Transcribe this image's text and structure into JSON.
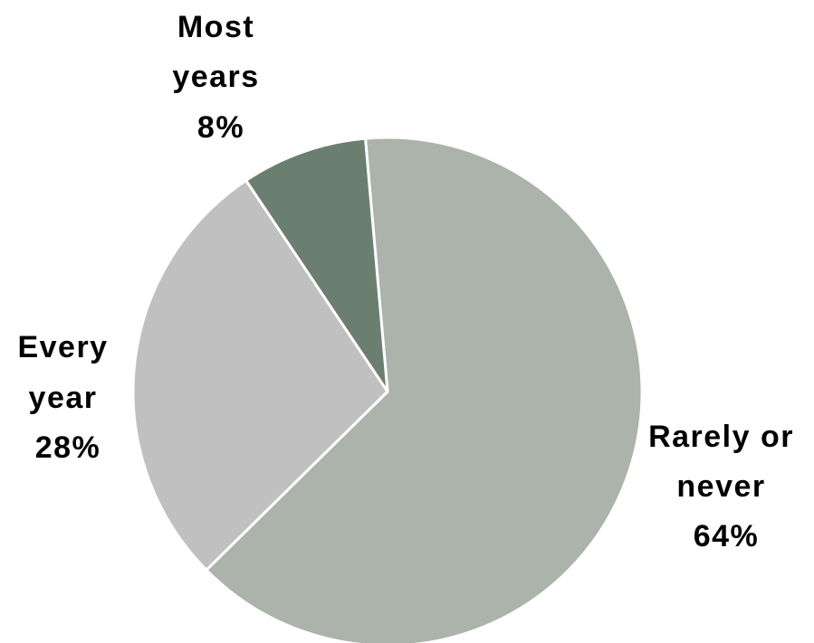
{
  "chart_data": {
    "type": "pie",
    "title": "",
    "start_angle_deg": -5,
    "direction": "clockwise",
    "slices": [
      {
        "label_lines": [
          "Rarely or",
          "never",
          "64%"
        ],
        "value": 64,
        "color": "#abb3aa"
      },
      {
        "label_lines": [
          "Every",
          "year",
          "28%"
        ],
        "value": 28,
        "color": "#c0c0c0"
      },
      {
        "label_lines": [
          "Most",
          "years",
          "8%"
        ],
        "value": 8,
        "color": "#6b7f70"
      }
    ]
  }
}
